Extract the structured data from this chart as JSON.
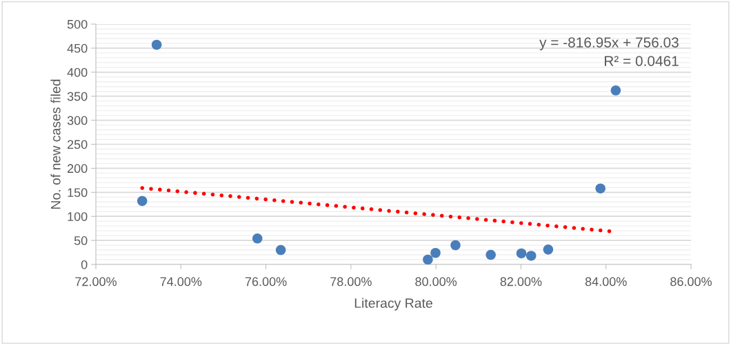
{
  "chart_data": {
    "type": "scatter",
    "xlabel": "Literacy Rate",
    "ylabel": "No. of new cases filed",
    "series": [
      {
        "color": "#4a7ebb",
        "marker": "circle",
        "x": [
          73.09,
          73.43,
          75.8,
          76.35,
          79.81,
          79.99,
          80.46,
          81.29,
          82.01,
          82.24,
          82.64,
          83.87,
          84.23
        ],
        "values": [
          132,
          457,
          54,
          30,
          10,
          24,
          40,
          20,
          23,
          18,
          31,
          158,
          362
        ]
      },
      {
        "type": "line",
        "color": "#ff0000",
        "line_style": "dotted",
        "x": [
          73.09,
          84.09
        ],
        "values": [
          159,
          69
        ]
      }
    ],
    "xlim": [
      72,
      86
    ],
    "xticks": [
      {
        "value": 72,
        "label": "72.00%"
      },
      {
        "value": 74,
        "label": "74.00%"
      },
      {
        "value": 76,
        "label": "76.00%"
      },
      {
        "value": 78,
        "label": "78.00%"
      },
      {
        "value": 80,
        "label": "80.00%"
      },
      {
        "value": 82,
        "label": "82.00%"
      },
      {
        "value": 84,
        "label": "84.00%"
      },
      {
        "value": 86,
        "label": "86.00%"
      }
    ],
    "ylim": [
      0,
      500
    ],
    "yticks": [
      0,
      50,
      100,
      150,
      200,
      250,
      300,
      350,
      400,
      450,
      500
    ],
    "grid": "y",
    "annotations": [
      "y = -816.95x + 756.03\nR² = 0.0461"
    ]
  }
}
